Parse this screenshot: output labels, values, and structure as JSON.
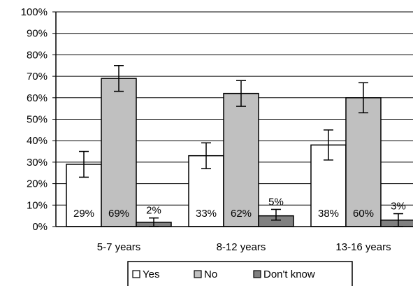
{
  "chart_data": {
    "type": "bar",
    "categories": [
      "5-7 years",
      "8-12 years",
      "13-16 years"
    ],
    "series": [
      {
        "name": "Yes",
        "values": [
          29,
          33,
          38
        ],
        "labels": [
          "29%",
          "33%",
          "38%"
        ],
        "error_low": [
          23,
          27,
          31
        ],
        "error_high": [
          35,
          39,
          45
        ],
        "color": "#ffffff"
      },
      {
        "name": "No",
        "values": [
          69,
          62,
          60
        ],
        "labels": [
          "69%",
          "62%",
          "60%"
        ],
        "error_low": [
          63,
          56,
          53
        ],
        "error_high": [
          75,
          68,
          67
        ],
        "color": "#c0c0c0"
      },
      {
        "name": "Don't know",
        "values": [
          2,
          5,
          3
        ],
        "labels": [
          "2%",
          "5%",
          "3%"
        ],
        "error_low": [
          0,
          3,
          0
        ],
        "error_high": [
          4,
          8,
          6
        ],
        "color": "#808080"
      }
    ],
    "y_ticks": [
      "0%",
      "10%",
      "20%",
      "30%",
      "40%",
      "50%",
      "60%",
      "70%",
      "80%",
      "90%",
      "100%"
    ],
    "ylim": [
      0,
      100
    ],
    "grid": true,
    "legend_position": "bottom",
    "title": "",
    "xlabel": "",
    "ylabel": ""
  }
}
